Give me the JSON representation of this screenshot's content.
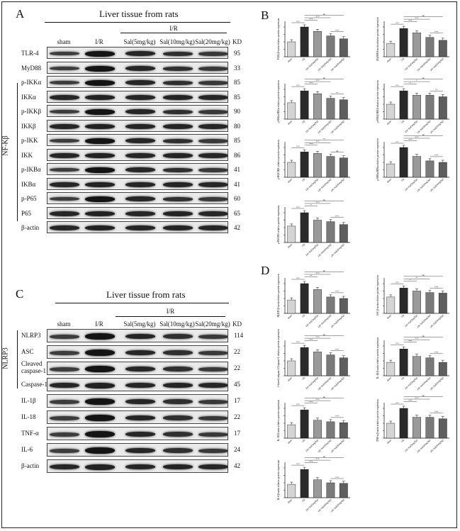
{
  "panels": {
    "A": {
      "letter": "A",
      "title": "Liver tissue from rats",
      "group_label": "I/R",
      "lanes": [
        "sham",
        "I/R",
        "Sal(5mg/kg)",
        "Sal(10mg/kg)",
        "Sal(20mg/kg)"
      ],
      "kd_header": "KD",
      "side_label": "NF-Kβ",
      "rows": [
        {
          "label": "TLR-4",
          "kd": "95"
        },
        {
          "label": "MyD88",
          "kd": "33"
        },
        {
          "label": "p-IKKα",
          "kd": "85"
        },
        {
          "label": "IKKα",
          "kd": "85"
        },
        {
          "label": "p-IKKβ",
          "kd": "90"
        },
        {
          "label": "IKKβ",
          "kd": "80"
        },
        {
          "label": "p-IKK",
          "kd": "85"
        },
        {
          "label": "IKK",
          "kd": "86"
        },
        {
          "label": "p-IKBα",
          "kd": "41"
        },
        {
          "label": "IKBα",
          "kd": "41"
        },
        {
          "label": "p-P65",
          "kd": "60"
        },
        {
          "label": "P65",
          "kd": "65"
        },
        {
          "label": "β-actin",
          "kd": "42"
        }
      ]
    },
    "C": {
      "letter": "C",
      "title": "Liver tissue from rats",
      "group_label": "I/R",
      "lanes": [
        "sham",
        "I/R",
        "Sal(5mg/kg)",
        "Sal(10mg/kg)",
        "Sal(20mg/kg)"
      ],
      "kd_header": "KD",
      "side_label": "NLRP3",
      "rows": [
        {
          "label": "NLRP3",
          "kd": "114"
        },
        {
          "label": "ASC",
          "kd": "22"
        },
        {
          "label": "Cleaved caspase-1",
          "kd": "22"
        },
        {
          "label": "Caspase-1",
          "kd": "45"
        },
        {
          "label": "IL-1β",
          "kd": "17"
        },
        {
          "label": "IL-18",
          "kd": "22"
        },
        {
          "label": "TNF-α",
          "kd": "17"
        },
        {
          "label": "IL-6",
          "kd": "24"
        },
        {
          "label": "β-actin",
          "kd": "42"
        }
      ]
    },
    "B": {
      "letter": "B"
    },
    "D": {
      "letter": "D"
    }
  },
  "chart_data": [
    {
      "type": "bar",
      "panel": "B",
      "ylabel": "TLR4/β-actin relative protein expression",
      "categories": [
        "sham",
        "I/R",
        "I/R+Sal(5mg/kg)",
        "I/R+Sal(10mg/kg)",
        "I/R+Sal(20mg/kg)"
      ],
      "values": [
        0.5,
        1.0,
        0.85,
        0.7,
        0.6
      ],
      "sig": [
        "***",
        "***",
        "***",
        "ns",
        "***"
      ]
    },
    {
      "type": "bar",
      "panel": "B",
      "ylabel": "MyD88/β-actin relative protein expression",
      "categories": [
        "sham",
        "I/R",
        "I/R+Sal(5mg/kg)",
        "I/R+Sal(10mg/kg)",
        "I/R+Sal(20mg/kg)"
      ],
      "values": [
        0.45,
        0.95,
        0.8,
        0.65,
        0.55
      ],
      "sig": [
        "***",
        "***",
        "***",
        "ns",
        "***"
      ]
    },
    {
      "type": "bar",
      "panel": "B",
      "ylabel": "p-IKKα/IKKα relative protein expression",
      "categories": [
        "sham",
        "I/R",
        "I/R+Sal(5mg/kg)",
        "I/R+Sal(10mg/kg)",
        "I/R+Sal(20mg/kg)"
      ],
      "values": [
        0.55,
        0.95,
        0.85,
        0.7,
        0.65
      ],
      "sig": [
        "***",
        "***",
        "***",
        "ns",
        "**"
      ]
    },
    {
      "type": "bar",
      "panel": "B",
      "ylabel": "p-IKKβ/IKKβ relative protein expression",
      "categories": [
        "sham",
        "I/R",
        "I/R+Sal(5mg/kg)",
        "I/R+Sal(10mg/kg)",
        "I/R+Sal(20mg/kg)"
      ],
      "values": [
        0.5,
        0.95,
        0.8,
        0.8,
        0.75
      ],
      "sig": [
        "***",
        "*",
        "*",
        "ns",
        "**"
      ]
    },
    {
      "type": "bar",
      "panel": "B",
      "ylabel": "p-IKK/IKK relative protein expression",
      "categories": [
        "sham",
        "I/R",
        "I/R+Sal(5mg/kg)",
        "I/R+Sal(10mg/kg)",
        "I/R+Sal(20mg/kg)"
      ],
      "values": [
        0.5,
        0.85,
        0.8,
        0.7,
        0.65
      ],
      "sig": [
        "***",
        "***",
        "***",
        "**",
        "ns"
      ]
    },
    {
      "type": "bar",
      "panel": "B",
      "ylabel": "p-IKBα/IKBα relative protein expression",
      "categories": [
        "sham",
        "I/R",
        "I/R+Sal(5mg/kg)",
        "I/R+Sal(10mg/kg)",
        "I/R+Sal(20mg/kg)"
      ],
      "values": [
        0.45,
        1.0,
        0.7,
        0.55,
        0.5
      ],
      "sig": [
        "***",
        "***",
        "***",
        "ns",
        "***"
      ]
    },
    {
      "type": "bar",
      "panel": "B",
      "ylabel": "p-P65/P65 relative protein expression",
      "categories": [
        "sham",
        "I/R",
        "I/R+Sal(5mg/kg)",
        "I/R+Sal(10mg/kg)",
        "I/R+Sal(20mg/kg)"
      ],
      "values": [
        0.55,
        1.0,
        0.75,
        0.7,
        0.6
      ],
      "sig": [
        "***",
        "*",
        "***",
        "ns",
        "***"
      ]
    },
    {
      "type": "bar",
      "panel": "D",
      "ylabel": "NLRP3/β-actin relative protein expression",
      "categories": [
        "sham",
        "I/R",
        "I/R+Sal(5mg/kg)",
        "I/R+Sal(10mg/kg)",
        "I/R+Sal(20mg/kg)"
      ],
      "values": [
        0.45,
        1.0,
        0.8,
        0.55,
        0.5
      ],
      "sig": [
        "***",
        "**",
        "***",
        "ns",
        "***"
      ]
    },
    {
      "type": "bar",
      "panel": "D",
      "ylabel": "ASC/β-actin relative protein expression",
      "categories": [
        "sham",
        "I/R",
        "I/R+Sal(5mg/kg)",
        "I/R+Sal(10mg/kg)",
        "I/R+Sal(20mg/kg)"
      ],
      "values": [
        0.55,
        0.85,
        0.75,
        0.7,
        0.68
      ],
      "sig": [
        "***",
        "*",
        "**",
        "ns",
        "***"
      ]
    },
    {
      "type": "bar",
      "panel": "D",
      "ylabel": "Cleaved caspase-1/Caspase-1 relative protein expression",
      "categories": [
        "sham",
        "I/R",
        "I/R+Sal(5mg/kg)",
        "I/R+Sal(10mg/kg)",
        "I/R+Sal(20mg/kg)"
      ],
      "values": [
        0.5,
        0.95,
        0.8,
        0.7,
        0.6
      ],
      "sig": [
        "***",
        "***",
        "***",
        "ns",
        "***"
      ]
    },
    {
      "type": "bar",
      "panel": "D",
      "ylabel": "IL-1β/β-actin relative protein expression",
      "categories": [
        "sham",
        "I/R",
        "I/R+Sal(5mg/kg)",
        "I/R+Sal(10mg/kg)",
        "I/R+Sal(20mg/kg)"
      ],
      "values": [
        0.45,
        0.9,
        0.65,
        0.6,
        0.45
      ],
      "sig": [
        "***",
        "***",
        "***",
        "ns",
        "***"
      ]
    },
    {
      "type": "bar",
      "panel": "D",
      "ylabel": "IL-18/β-actin relative protein expression",
      "categories": [
        "sham",
        "I/R",
        "I/R+Sal(5mg/kg)",
        "I/R+Sal(10mg/kg)",
        "I/R+Sal(20mg/kg)"
      ],
      "values": [
        0.45,
        0.95,
        0.6,
        0.55,
        0.52
      ],
      "sig": [
        "***",
        "***",
        "***",
        "ns",
        "***"
      ]
    },
    {
      "type": "bar",
      "panel": "D",
      "ylabel": "TNF-α/β-actin relative protein expression",
      "categories": [
        "sham",
        "I/R",
        "I/R+Sal(5mg/kg)",
        "I/R+Sal(10mg/kg)",
        "I/R+Sal(20mg/kg)"
      ],
      "values": [
        0.5,
        1.0,
        0.7,
        0.7,
        0.65
      ],
      "sig": [
        "***",
        "***",
        "***",
        "ns",
        "***"
      ]
    },
    {
      "type": "bar",
      "panel": "D",
      "ylabel": "IL-6/β-actin relative protein expression",
      "categories": [
        "sham",
        "I/R",
        "I/R+Sal(5mg/kg)",
        "I/R+Sal(10mg/kg)",
        "I/R+Sal(20mg/kg)"
      ],
      "values": [
        0.45,
        0.95,
        0.6,
        0.5,
        0.48
      ],
      "sig": [
        "***",
        "***",
        "***",
        "ns",
        "***"
      ]
    }
  ],
  "colors": {
    "sham": "#d4d4d4",
    "ir": "#2a2a2a",
    "sal5": "#9a9a9a",
    "sal10": "#7a7a7a",
    "sal20": "#5e5e5e"
  }
}
